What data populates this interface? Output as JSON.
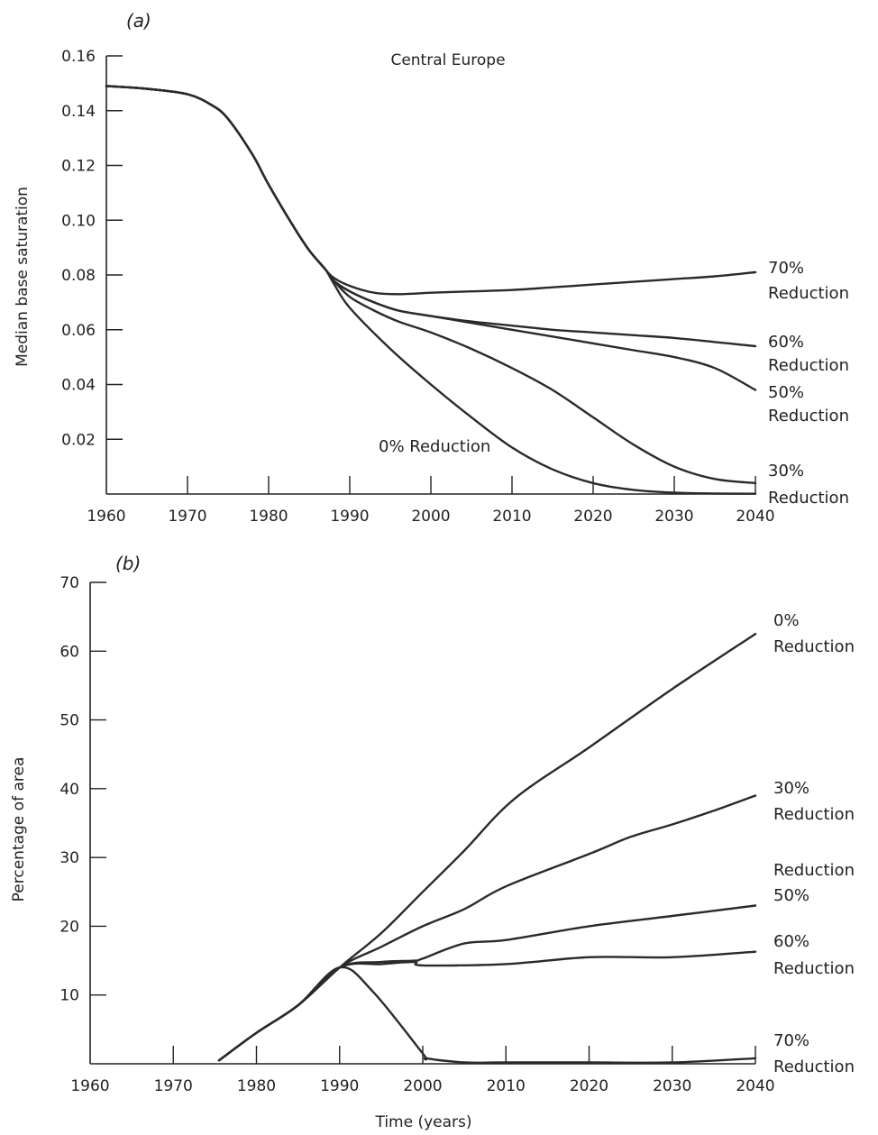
{
  "chart_data": [
    {
      "panel_label": "(a)",
      "title": "Central Europe",
      "type": "line",
      "xlabel": "",
      "ylabel": "Median base saturation",
      "xlim": [
        1960,
        2040
      ],
      "ylim": [
        0,
        0.16
      ],
      "xticks": [
        1960,
        1970,
        1980,
        1990,
        2000,
        2010,
        2020,
        2030,
        2040
      ],
      "yticks": [
        0.02,
        0.04,
        0.06,
        0.08,
        0.1,
        0.12,
        0.14,
        0.16
      ],
      "ytick_labels": [
        "0.02",
        "0.04",
        "0.06",
        "0.08",
        "0.10",
        "0.12",
        "0.14",
        "0.16"
      ],
      "grid": false,
      "series": [
        {
          "name": "70% Reduction",
          "label_lines": [
            "70%",
            "Reduction"
          ],
          "x": [
            1960,
            1965,
            1970,
            1973,
            1975,
            1978,
            1980,
            1983,
            1985,
            1987,
            1988,
            1990,
            1993,
            1996,
            2000,
            2005,
            2010,
            2015,
            2020,
            2025,
            2030,
            2035,
            2040
          ],
          "y": [
            0.149,
            0.148,
            0.146,
            0.142,
            0.137,
            0.124,
            0.113,
            0.098,
            0.089,
            0.082,
            0.079,
            0.076,
            0.0735,
            0.073,
            0.0735,
            0.074,
            0.0745,
            0.0755,
            0.0765,
            0.0775,
            0.0785,
            0.0795,
            0.081
          ]
        },
        {
          "name": "60% Reduction",
          "label_lines": [
            "60%",
            "Reduction"
          ],
          "x": [
            1960,
            1965,
            1970,
            1973,
            1975,
            1978,
            1980,
            1983,
            1985,
            1987,
            1988,
            1990,
            1993,
            1996,
            2000,
            2005,
            2010,
            2015,
            2020,
            2025,
            2030,
            2035,
            2040
          ],
          "y": [
            0.149,
            0.148,
            0.146,
            0.142,
            0.137,
            0.124,
            0.113,
            0.098,
            0.089,
            0.082,
            0.078,
            0.074,
            0.07,
            0.067,
            0.065,
            0.063,
            0.0615,
            0.06,
            0.059,
            0.058,
            0.057,
            0.0555,
            0.054
          ]
        },
        {
          "name": "50% Reduction",
          "label_lines": [
            "50%",
            "Reduction"
          ],
          "x": [
            1960,
            1965,
            1970,
            1973,
            1975,
            1978,
            1980,
            1983,
            1985,
            1987,
            1988,
            1990,
            1993,
            1996,
            2000,
            2005,
            2010,
            2015,
            2020,
            2025,
            2030,
            2035,
            2040
          ],
          "y": [
            0.149,
            0.148,
            0.146,
            0.142,
            0.137,
            0.124,
            0.113,
            0.098,
            0.089,
            0.082,
            0.078,
            0.074,
            0.07,
            0.067,
            0.065,
            0.0625,
            0.06,
            0.0575,
            0.055,
            0.0525,
            0.05,
            0.046,
            0.038
          ]
        },
        {
          "name": "30% Reduction",
          "label_lines": [
            "30%",
            "Reduction"
          ],
          "x": [
            1960,
            1965,
            1970,
            1973,
            1975,
            1978,
            1980,
            1983,
            1985,
            1987,
            1988,
            1990,
            1993,
            1996,
            2000,
            2005,
            2010,
            2015,
            2020,
            2025,
            2030,
            2035,
            2040
          ],
          "y": [
            0.149,
            0.148,
            0.146,
            0.142,
            0.137,
            0.124,
            0.113,
            0.098,
            0.089,
            0.082,
            0.078,
            0.072,
            0.067,
            0.063,
            0.059,
            0.053,
            0.046,
            0.038,
            0.028,
            0.018,
            0.01,
            0.0055,
            0.004
          ]
        },
        {
          "name": "0% Reduction",
          "label_lines": [
            "0% Reduction"
          ],
          "x": [
            1960,
            1965,
            1970,
            1973,
            1975,
            1978,
            1980,
            1983,
            1985,
            1987,
            1988,
            1990,
            1995,
            2000,
            2005,
            2010,
            2015,
            2020,
            2025,
            2030,
            2035,
            2040
          ],
          "y": [
            0.149,
            0.148,
            0.146,
            0.142,
            0.137,
            0.124,
            0.113,
            0.098,
            0.089,
            0.082,
            0.077,
            0.068,
            0.053,
            0.04,
            0.028,
            0.017,
            0.009,
            0.004,
            0.0015,
            0.0005,
            0.0002,
            0.0001
          ]
        }
      ]
    },
    {
      "panel_label": "(b)",
      "title": "",
      "type": "line",
      "xlabel": "Time (years)",
      "ylabel": "Percentage of area",
      "xlim": [
        1960,
        2040
      ],
      "ylim": [
        0,
        70
      ],
      "xticks": [
        1960,
        1970,
        1980,
        1990,
        2000,
        2010,
        2020,
        2030,
        2040
      ],
      "yticks": [
        10,
        20,
        30,
        40,
        50,
        60,
        70
      ],
      "ytick_labels": [
        "10",
        "20",
        "30",
        "40",
        "50",
        "60",
        "70"
      ],
      "grid": false,
      "series": [
        {
          "name": "0% Reduction",
          "label_lines": [
            "0%",
            "Reduction"
          ],
          "x": [
            1975.5,
            1980,
            1985,
            1990,
            1995,
            2000,
            2005,
            2011,
            2020,
            2030,
            2040
          ],
          "y": [
            0.5,
            4.5,
            8.5,
            14,
            19,
            25,
            31,
            38.5,
            46,
            54.5,
            62.5
          ]
        },
        {
          "name": "30% Reduction",
          "label_lines": [
            "30%",
            "Reduction"
          ],
          "x": [
            1975.5,
            1980,
            1985,
            1990,
            1995,
            2000,
            2005,
            2010,
            2020,
            2025,
            2030,
            2035,
            2040
          ],
          "y": [
            0.5,
            4.5,
            8.5,
            14,
            17,
            20,
            22.5,
            25.8,
            30.5,
            33,
            34.8,
            36.8,
            39
          ]
        },
        {
          "name": "50% Reduction",
          "label_lines": [
            "Reduction",
            "50%"
          ],
          "x": [
            1975.5,
            1980,
            1985,
            1990,
            1995,
            1999,
            2000,
            2005,
            2010,
            2020,
            2030,
            2040
          ],
          "y": [
            0.5,
            4.5,
            8.5,
            14,
            14.8,
            15,
            15.3,
            17.5,
            18,
            20,
            21.5,
            23
          ]
        },
        {
          "name": "60% Reduction",
          "label_lines": [
            "60%",
            "Reduction"
          ],
          "x": [
            1975.5,
            1980,
            1985,
            1990,
            1995,
            1999,
            2000,
            2010,
            2020,
            2030,
            2040
          ],
          "y": [
            0.5,
            4.5,
            8.5,
            14,
            14.5,
            14.8,
            14.3,
            14.5,
            15.5,
            15.5,
            16.3
          ]
        },
        {
          "name": "70% Reduction",
          "label_lines": [
            "70%",
            "Reduction"
          ],
          "x": [
            1975.5,
            1980,
            1985,
            1990,
            1994,
            2000,
            2000.5,
            2005,
            2010,
            2020,
            2030,
            2040
          ],
          "y": [
            0.5,
            4.5,
            8.5,
            14,
            10.5,
            1.5,
            0.8,
            0.2,
            0.2,
            0.2,
            0.2,
            0.8
          ]
        }
      ]
    }
  ]
}
